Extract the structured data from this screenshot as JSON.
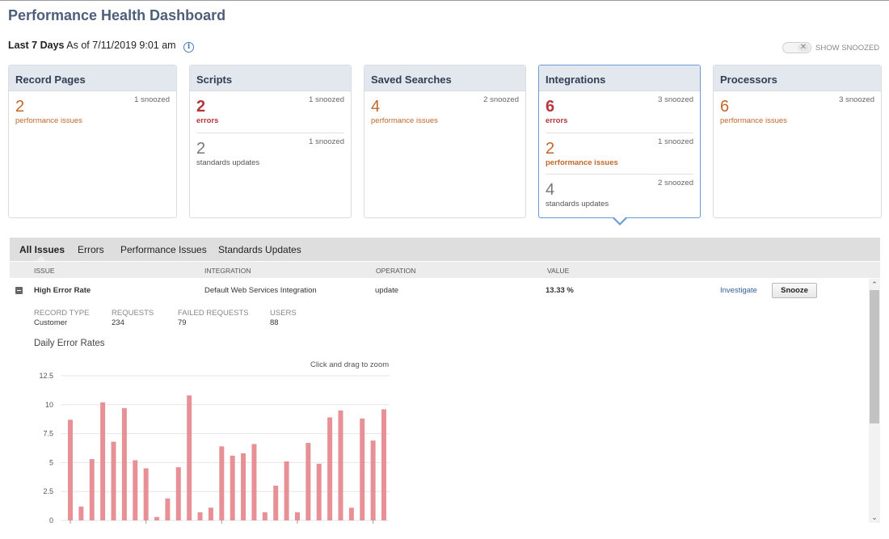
{
  "page_title": "Performance Health Dashboard",
  "range": {
    "period": "Last 7 Days",
    "as_of": "As of 7/11/2019 9:01 am"
  },
  "show_snoozed_label": "SHOW SNOOZED",
  "cards": [
    {
      "title": "Record Pages",
      "metrics": [
        {
          "value": "2",
          "label": "performance issues",
          "snoozed": "1 snoozed"
        }
      ]
    },
    {
      "title": "Scripts",
      "metrics": [
        {
          "value": "2",
          "label": "errors",
          "snoozed": "1 snoozed"
        },
        {
          "value": "2",
          "label": "standards updates",
          "snoozed": "1 snoozed"
        }
      ]
    },
    {
      "title": "Saved Searches",
      "metrics": [
        {
          "value": "4",
          "label": "performance issues",
          "snoozed": "2 snoozed"
        }
      ]
    },
    {
      "title": "Integrations",
      "metrics": [
        {
          "value": "6",
          "label": "errors",
          "snoozed": "3 snoozed"
        },
        {
          "value": "2",
          "label": "performance issues",
          "snoozed": "1 snoozed"
        },
        {
          "value": "4",
          "label": "standards updates",
          "snoozed": "2 snoozed"
        }
      ]
    },
    {
      "title": "Processors",
      "metrics": [
        {
          "value": "6",
          "label": "performance issues",
          "snoozed": "3 snoozed"
        }
      ]
    }
  ],
  "tabs": [
    "All Issues",
    "Errors",
    "Performance Issues",
    "Standards Updates"
  ],
  "columns": [
    "ISSUE",
    "INTEGRATION",
    "OPERATION",
    "VALUE"
  ],
  "issue_row": {
    "issue": "High Error Rate",
    "integration": "Default Web Services Integration",
    "operation": "update",
    "value": "13.33 %",
    "investigate": "Investigate",
    "snooze": "Snooze"
  },
  "details": {
    "record_type_label": "RECORD TYPE",
    "record_type": "Customer",
    "requests_label": "REQUESTS",
    "requests": "234",
    "failed_label": "FAILED REQUESTS",
    "failed": "79",
    "users_label": "USERS",
    "users": "88"
  },
  "chart_heading": "Daily Error Rates",
  "zoom_hint": "Click and drag to zoom",
  "chart_data": {
    "type": "bar",
    "title": "Daily Error Rates",
    "ylim": [
      0,
      12.5
    ],
    "yticks": [
      "12.5",
      "10",
      "7.5",
      "5",
      "2.5",
      "0"
    ],
    "values": [
      8.7,
      1.2,
      5.3,
      10.2,
      6.8,
      9.7,
      5.2,
      4.5,
      0.3,
      1.9,
      4.6,
      10.8,
      0.7,
      1.1,
      6.4,
      5.6,
      5.8,
      6.6,
      0.7,
      3.0,
      5.1,
      0.7,
      6.7,
      4.9,
      8.9,
      9.5,
      1.1,
      8.8,
      6.9,
      9.6
    ],
    "bar_color": "#e79196",
    "grid": true
  },
  "colors": {
    "accent": "#6a9bd6",
    "error": "#b2383b",
    "warning": "#c0672c"
  }
}
